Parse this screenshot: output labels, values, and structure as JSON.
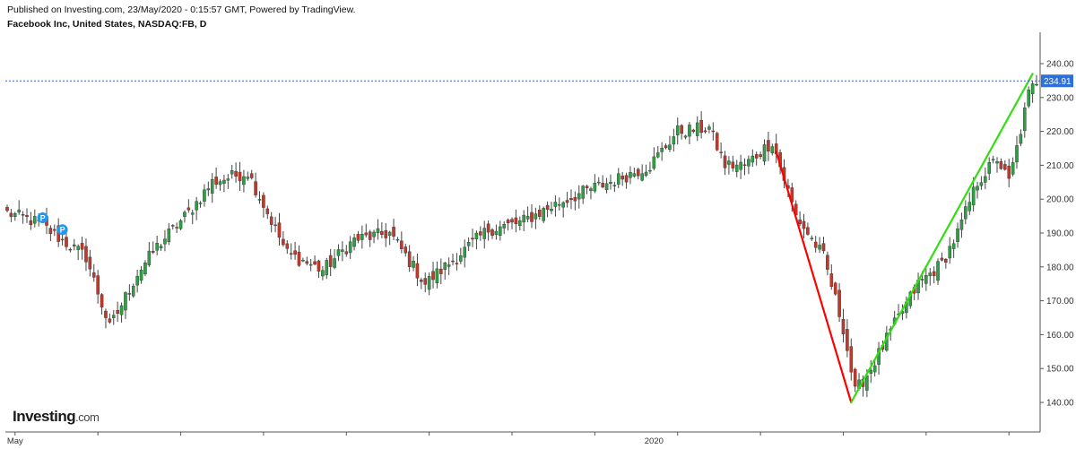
{
  "header": {
    "published": "Published on Investing.com, 23/May/2020 - 0:15:57 GMT, Powered by TradingView.",
    "symbol": "Facebook Inc, United States, NASDAQ:FB, D"
  },
  "logo": {
    "main": "Investing",
    "suffix": ".com"
  },
  "colors": {
    "up": "#2f9e44",
    "down": "#c0392b",
    "wick": "#444444",
    "price_line": "#3b5bdb",
    "price_badge": "#2f6fdb",
    "trend_down": "#ff0000",
    "trend_up": "#33dd11",
    "marker": "#2196f3"
  },
  "chart_data": {
    "type": "candlestick",
    "title": "Facebook Inc, United States, NASDAQ:FB, D",
    "ylim": [
      136,
      246
    ],
    "y_ticks": [
      140,
      150,
      160,
      170,
      180,
      190,
      200,
      210,
      220,
      230,
      240
    ],
    "y_tick_labels": [
      "140.00",
      "150.00",
      "160.00",
      "170.00",
      "180.00",
      "190.00",
      "200.00",
      "210.00",
      "220.00",
      "230.00",
      "240.00"
    ],
    "last_price": 234.91,
    "last_price_label": "234.91",
    "x_labels": [
      {
        "label": "May",
        "index": 2
      },
      {
        "label": "2020",
        "index": 164
      }
    ],
    "markers": [
      {
        "label": "P",
        "index": 9,
        "price": 194.5
      },
      {
        "label": "P",
        "index": 14,
        "price": 191
      }
    ],
    "trendlines": [
      {
        "name": "decline",
        "from": {
          "index": 195,
          "price": 214
        },
        "to": {
          "index": 214,
          "price": 140
        }
      },
      {
        "name": "rally",
        "from": {
          "index": 214,
          "price": 140
        },
        "to": {
          "index": 260,
          "price": 237
        }
      }
    ],
    "anchors": [
      {
        "i": 0,
        "p": 196
      },
      {
        "i": 8,
        "p": 193
      },
      {
        "i": 15,
        "p": 187
      },
      {
        "i": 20,
        "p": 183
      },
      {
        "i": 26,
        "p": 162
      },
      {
        "i": 33,
        "p": 178
      },
      {
        "i": 38,
        "p": 186
      },
      {
        "i": 46,
        "p": 196
      },
      {
        "i": 52,
        "p": 205
      },
      {
        "i": 61,
        "p": 208
      },
      {
        "i": 66,
        "p": 196
      },
      {
        "i": 71,
        "p": 184
      },
      {
        "i": 80,
        "p": 179
      },
      {
        "i": 88,
        "p": 188
      },
      {
        "i": 97,
        "p": 190
      },
      {
        "i": 106,
        "p": 175
      },
      {
        "i": 114,
        "p": 183
      },
      {
        "i": 122,
        "p": 191
      },
      {
        "i": 130,
        "p": 193
      },
      {
        "i": 140,
        "p": 199
      },
      {
        "i": 148,
        "p": 203
      },
      {
        "i": 155,
        "p": 206
      },
      {
        "i": 163,
        "p": 210
      },
      {
        "i": 170,
        "p": 220
      },
      {
        "i": 178,
        "p": 221
      },
      {
        "i": 182,
        "p": 210
      },
      {
        "i": 187,
        "p": 210
      },
      {
        "i": 194,
        "p": 217
      },
      {
        "i": 200,
        "p": 195
      },
      {
        "i": 207,
        "p": 183
      },
      {
        "i": 212,
        "p": 162
      },
      {
        "i": 215,
        "p": 143
      },
      {
        "i": 219,
        "p": 150
      },
      {
        "i": 225,
        "p": 163
      },
      {
        "i": 231,
        "p": 175
      },
      {
        "i": 237,
        "p": 181
      },
      {
        "i": 241,
        "p": 190
      },
      {
        "i": 246,
        "p": 205
      },
      {
        "i": 251,
        "p": 212
      },
      {
        "i": 254,
        "p": 205
      },
      {
        "i": 256,
        "p": 215
      },
      {
        "i": 259,
        "p": 231
      },
      {
        "i": 261,
        "p": 235
      }
    ]
  }
}
